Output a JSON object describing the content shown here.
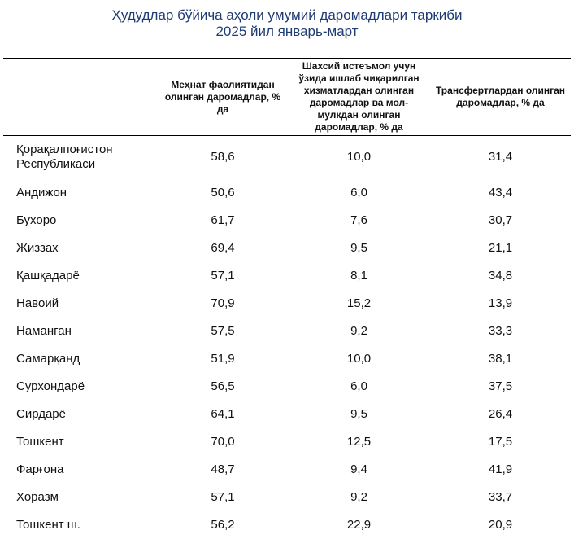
{
  "title": {
    "line1": "Ҳудудлар бўйича аҳоли умумий даромадлари таркиби",
    "line2": "2025 йил январь-март"
  },
  "table": {
    "headers": [
      "",
      "Меҳнат фаолиятидан олинган даромадлар, % да",
      "Шахсий истеъмол учун ўзида ишлаб чиқарилган хизматлардан олинган даромадлар ва мол-мулкдан олинган даромадлар, % да",
      "Трансфертлардан олинган даромадлар, % да"
    ],
    "rows": [
      {
        "region": "Қорақалпоғистон Республикаси",
        "labor": "58,6",
        "own": "10,0",
        "transfers": "31,4"
      },
      {
        "region": "Андижон",
        "labor": "50,6",
        "own": "6,0",
        "transfers": "43,4"
      },
      {
        "region": "Бухоро",
        "labor": "61,7",
        "own": "7,6",
        "transfers": "30,7"
      },
      {
        "region": "Жиззах",
        "labor": "69,4",
        "own": "9,5",
        "transfers": "21,1"
      },
      {
        "region": "Қашқадарё",
        "labor": "57,1",
        "own": "8,1",
        "transfers": "34,8"
      },
      {
        "region": "Навоий",
        "labor": "70,9",
        "own": "15,2",
        "transfers": "13,9"
      },
      {
        "region": "Наманган",
        "labor": "57,5",
        "own": "9,2",
        "transfers": "33,3"
      },
      {
        "region": "Самарқанд",
        "labor": "51,9",
        "own": "10,0",
        "transfers": "38,1"
      },
      {
        "region": "Сурхондарё",
        "labor": "56,5",
        "own": "6,0",
        "transfers": "37,5"
      },
      {
        "region": "Сирдарё",
        "labor": "64,1",
        "own": "9,5",
        "transfers": "26,4"
      },
      {
        "region": "Тошкент",
        "labor": "70,0",
        "own": "12,5",
        "transfers": "17,5"
      },
      {
        "region": "Фарғона",
        "labor": "48,7",
        "own": "9,4",
        "transfers": "41,9"
      },
      {
        "region": "Хоразм",
        "labor": "57,1",
        "own": "9,2",
        "transfers": "33,7"
      },
      {
        "region": "Тошкент ш.",
        "labor": "56,2",
        "own": "22,9",
        "transfers": "20,9"
      }
    ]
  },
  "colors": {
    "title": "#1f3b73",
    "text": "#111111",
    "rule": "#000000"
  }
}
